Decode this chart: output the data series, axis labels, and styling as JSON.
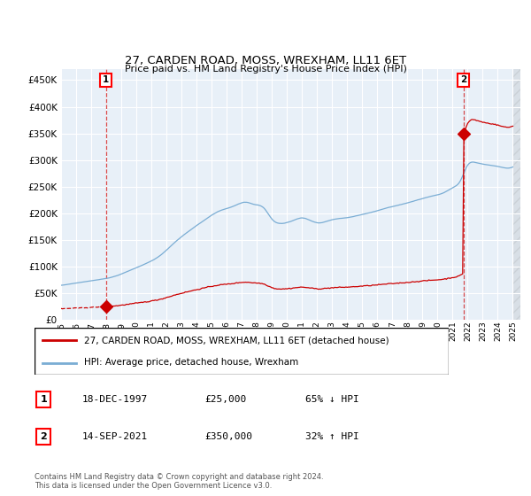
{
  "title": "27, CARDEN ROAD, MOSS, WREXHAM, LL11 6ET",
  "subtitle": "Price paid vs. HM Land Registry's House Price Index (HPI)",
  "legend_line1": "27, CARDEN ROAD, MOSS, WREXHAM, LL11 6ET (detached house)",
  "legend_line2": "HPI: Average price, detached house, Wrexham",
  "annotation1_label": "1",
  "annotation1_date": "18-DEC-1997",
  "annotation1_price": "£25,000",
  "annotation1_hpi": "65% ↓ HPI",
  "annotation2_label": "2",
  "annotation2_date": "14-SEP-2021",
  "annotation2_price": "£350,000",
  "annotation2_hpi": "32% ↑ HPI",
  "footer": "Contains HM Land Registry data © Crown copyright and database right 2024.\nThis data is licensed under the Open Government Licence v3.0.",
  "sale1_x": 1997.97,
  "sale1_y": 25000,
  "sale2_x": 2021.71,
  "sale2_y": 350000,
  "price_color": "#cc0000",
  "hpi_color": "#7aadd4",
  "chart_bg": "#e8f0f8",
  "ylim_max": 470000,
  "ylim_min": 0,
  "xlim_min": 1995.0,
  "xlim_max": 2025.5,
  "hatch_start": 2025.0,
  "yticks": [
    0,
    50000,
    100000,
    150000,
    200000,
    250000,
    300000,
    350000,
    400000,
    450000
  ],
  "xticks": [
    1995,
    1996,
    1997,
    1998,
    1999,
    2000,
    2001,
    2002,
    2003,
    2004,
    2005,
    2006,
    2007,
    2008,
    2009,
    2010,
    2011,
    2012,
    2013,
    2014,
    2015,
    2016,
    2017,
    2018,
    2019,
    2020,
    2021,
    2022,
    2023,
    2024,
    2025
  ]
}
